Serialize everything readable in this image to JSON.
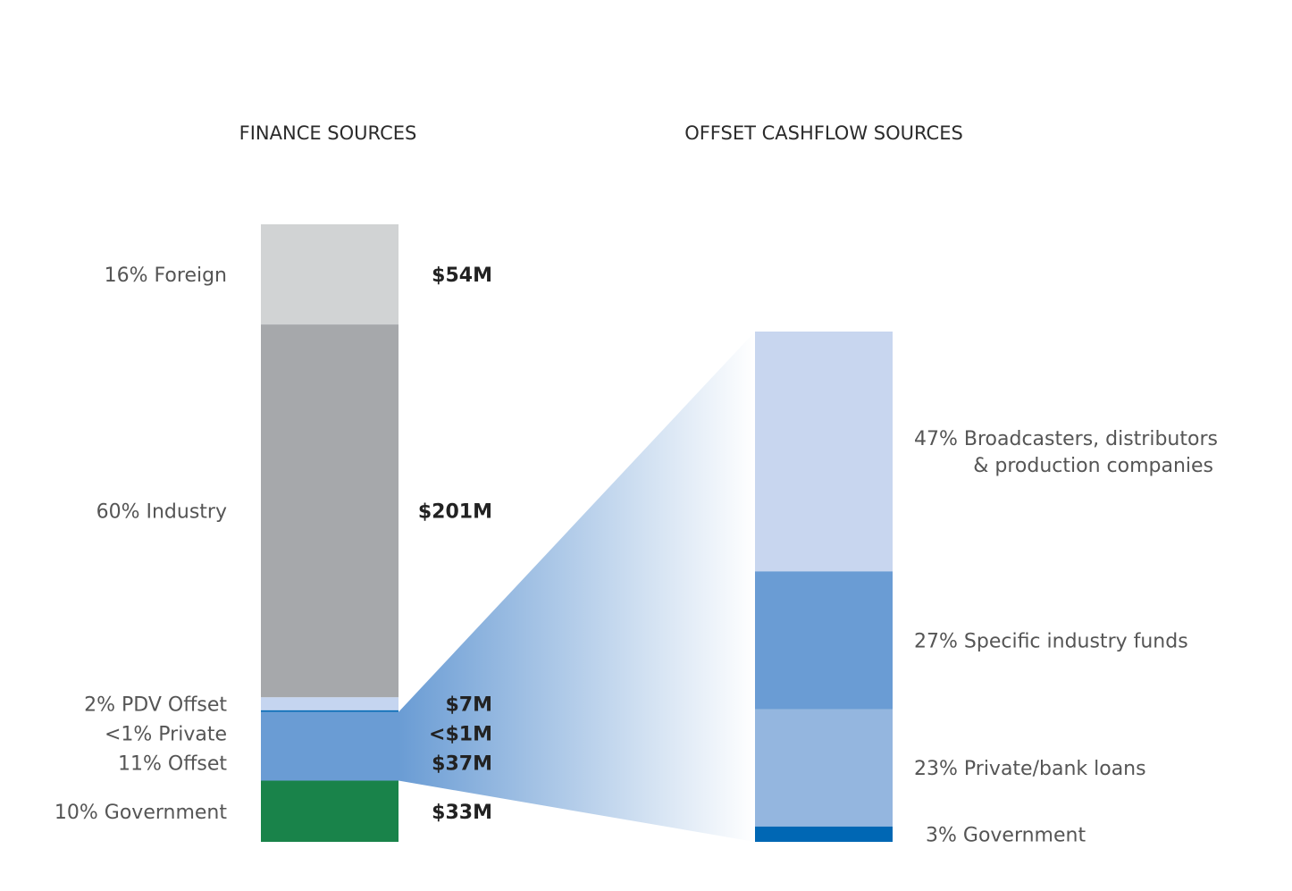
{
  "chart_data": [
    {
      "type": "bar",
      "title": "FINANCE SOURCES",
      "segments": [
        {
          "percent_label": "16% Foreign",
          "value_label": "$54M",
          "value": 54,
          "share": 16,
          "color": "#d1d3d4"
        },
        {
          "percent_label": "60% Industry",
          "value_label": "$201M",
          "value": 201,
          "share": 60,
          "color": "#a6a8ab"
        },
        {
          "percent_label": "2% PDV Offset",
          "value_label": "$7M",
          "value": 7,
          "share": 2,
          "color": "#c5d5f0"
        },
        {
          "percent_label": "<1% Private",
          "value_label": "<$1M",
          "value": 0.9,
          "share": 0.9,
          "color": "#0067b4"
        },
        {
          "percent_label": "11% Offset",
          "value_label": "$37M",
          "value": 37,
          "share": 11,
          "color": "#6a9cd4"
        },
        {
          "percent_label": "10% Government",
          "value_label": "$33M",
          "value": 33,
          "share": 10,
          "color": "#19834a"
        }
      ]
    },
    {
      "type": "bar",
      "title": "OFFSET CASHFLOW SOURCES",
      "segments": [
        {
          "label_lines": [
            "47% Broadcasters, distributors",
            "& production companies"
          ],
          "share": 47,
          "color": "#c8d6ef"
        },
        {
          "label_lines": [
            "27% Specific industry funds"
          ],
          "share": 27,
          "color": "#6a9cd4"
        },
        {
          "label_lines": [
            "23% Private/bank loans"
          ],
          "share": 23,
          "color": "#94b6df"
        },
        {
          "label_lines": [
            "3% Government"
          ],
          "share": 3,
          "color": "#0067b4"
        }
      ]
    }
  ],
  "connector": {
    "from_segment": "11% Offset",
    "color_start": "#6a9cd4",
    "color_end": "#ffffff"
  }
}
